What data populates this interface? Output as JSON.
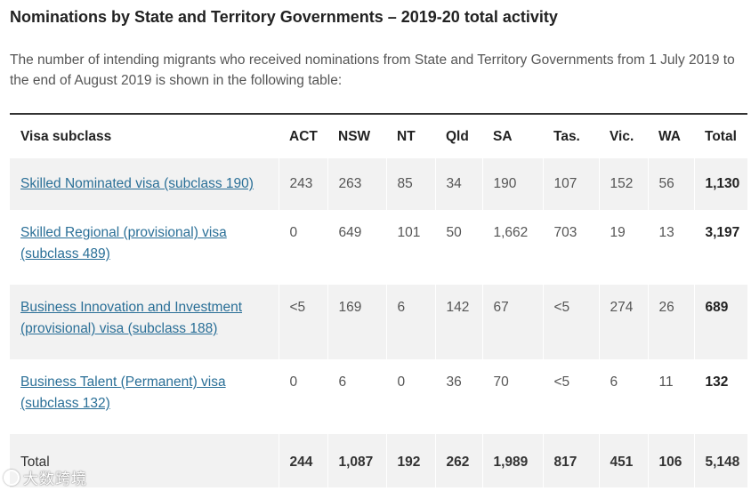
{
  "title": "Nominations by State and Territory Governments – 2019-20 total activity",
  "intro": "The number of intending migrants who received nominations from State and Territory Governments from 1 July 2019 to the end of August 2019 is shown in the following table:",
  "table": {
    "headers": [
      "Visa subclass",
      "ACT",
      "NSW",
      "NT",
      "Qld",
      "SA",
      "Tas.",
      "Vic.",
      "WA",
      "Total"
    ],
    "rows": [
      {
        "label": "Skilled Nominated visa (subclass 190)",
        "values": [
          "243",
          "263",
          "85",
          "34",
          "190",
          "107",
          "152",
          "56"
        ],
        "total": "1,130"
      },
      {
        "label": "Skilled Regional (provisional) visa (subclass 489)",
        "values": [
          "0",
          "649",
          "101",
          "50",
          "1,662",
          "703",
          "19",
          "13"
        ],
        "total": "3,197"
      },
      {
        "label": "Business Innovation and Investment (provisional) visa (subclass 188)",
        "values": [
          "<5",
          "169",
          "6",
          "142",
          "67",
          "<5",
          "274",
          "26"
        ],
        "total": "689"
      },
      {
        "label": "Business Talent (Permanent) visa (subclass 132)",
        "values": [
          "0",
          "6",
          "0",
          "36",
          "70",
          "<5",
          "6",
          "11"
        ],
        "total": "132"
      }
    ],
    "total_row": {
      "label": "Total",
      "values": [
        "244",
        "1,087",
        "192",
        "262",
        "1,989",
        "817",
        "451",
        "106"
      ],
      "total": "5,148"
    }
  },
  "watermark": "大数跨境"
}
